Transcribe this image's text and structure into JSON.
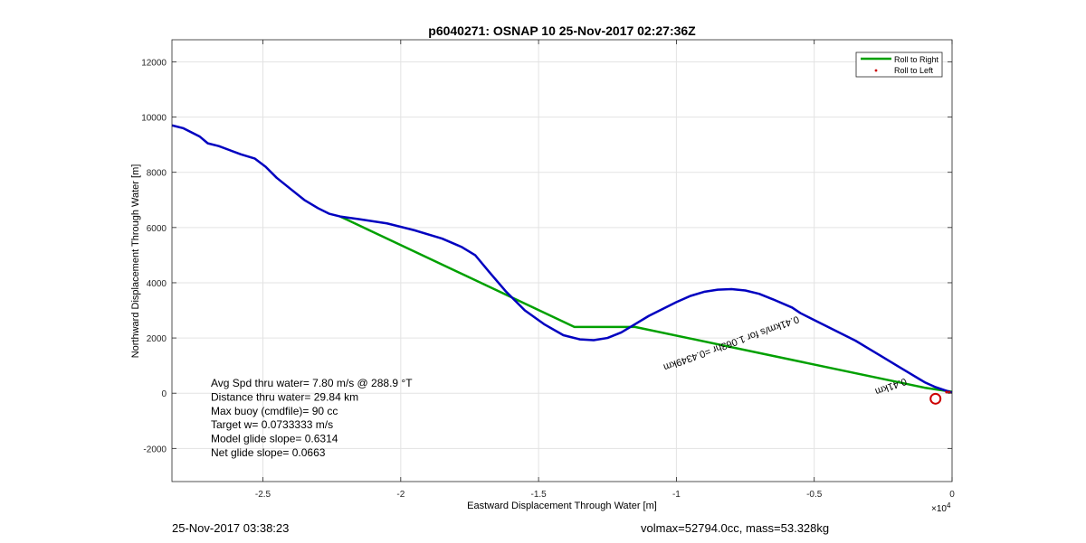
{
  "chart_data": {
    "type": "line",
    "title": "p6040271: OSNAP 10 25-Nov-2017 02:27:36Z",
    "xlabel": "Eastward Displacement Through Water [m]",
    "ylabel": "Northward Displacement Through Water [m]",
    "x_scale_label": "×10",
    "x_scale_exponent": "4",
    "xlim": [
      -2.83,
      0
    ],
    "ylim": [
      -3200,
      12800
    ],
    "x_ticks": [
      -2.5,
      -2,
      -1.5,
      -1,
      -0.5,
      0
    ],
    "x_tick_labels": [
      "-2.5",
      "-2",
      "-1.5",
      "-1",
      "-0.5",
      "0"
    ],
    "y_ticks": [
      -2000,
      0,
      2000,
      4000,
      6000,
      8000,
      10000,
      12000
    ],
    "y_tick_labels": [
      "-2000",
      "0",
      "2000",
      "4000",
      "6000",
      "8000",
      "10000",
      "12000"
    ],
    "grid": true,
    "legend_position": "top-right",
    "series": [
      {
        "name": "Roll to Right",
        "color": "#00a000",
        "x": [
          -2.22,
          -1.37,
          -1.15,
          -0.1,
          0
        ],
        "y": [
          6400,
          2400,
          2400,
          200,
          50
        ]
      },
      {
        "name": "Roll to Left",
        "color": "#cc0000",
        "x": [
          -0.02,
          -0.01
        ],
        "y": [
          40,
          30
        ]
      },
      {
        "name": "",
        "color": "#0000c0",
        "x": [
          -2.83,
          -2.79,
          -2.73,
          -2.7,
          -2.66,
          -2.62,
          -2.58,
          -2.53,
          -2.49,
          -2.45,
          -2.4,
          -2.35,
          -2.3,
          -2.26,
          -2.22,
          -2.15,
          -2.05,
          -1.95,
          -1.85,
          -1.78,
          -1.73,
          -1.68,
          -1.62,
          -1.55,
          -1.48,
          -1.41,
          -1.35,
          -1.3,
          -1.25,
          -1.2,
          -1.15,
          -1.1,
          -1.05,
          -1.0,
          -0.95,
          -0.9,
          -0.85,
          -0.8,
          -0.75,
          -0.7,
          -0.65,
          -0.58,
          -0.55,
          -0.5,
          -0.45,
          -0.4,
          -0.35,
          -0.3,
          -0.25,
          -0.2,
          -0.15,
          -0.1,
          -0.06,
          -0.03,
          0
        ],
        "y": [
          9700,
          9600,
          9300,
          9050,
          8950,
          8800,
          8650,
          8500,
          8200,
          7800,
          7400,
          7000,
          6700,
          6500,
          6400,
          6300,
          6150,
          5900,
          5600,
          5300,
          5000,
          4400,
          3700,
          3000,
          2500,
          2100,
          1950,
          1920,
          2000,
          2200,
          2500,
          2800,
          3050,
          3300,
          3520,
          3670,
          3750,
          3770,
          3720,
          3600,
          3400,
          3100,
          2900,
          2650,
          2400,
          2150,
          1900,
          1600,
          1300,
          1000,
          700,
          400,
          220,
          120,
          20
        ]
      }
    ],
    "annotations": [
      {
        "text": "0.41km/s for 1.063hr =0.4349km",
        "x": -0.56,
        "y": 2800,
        "rotation": 160
      },
      {
        "text": "0.41km",
        "x": -0.17,
        "y": 550,
        "rotation": 160
      }
    ],
    "end_marker": {
      "shape": "circle",
      "color": "#cc0000",
      "x": -0.06,
      "y": -200
    },
    "stats_lines": [
      "Avg Spd thru water=  7.80 m/s @ 288.9 °T",
      "Distance thru water= 29.84 km",
      "Max buoy (cmdfile)= 90 cc",
      "Target w= 0.0733333 m/s",
      "Model glide slope= 0.6314",
      "Net glide slope= 0.0663"
    ]
  },
  "footer": {
    "left": "25-Nov-2017 03:38:23",
    "right": "volmax=52794.0cc, mass=53.328kg"
  }
}
